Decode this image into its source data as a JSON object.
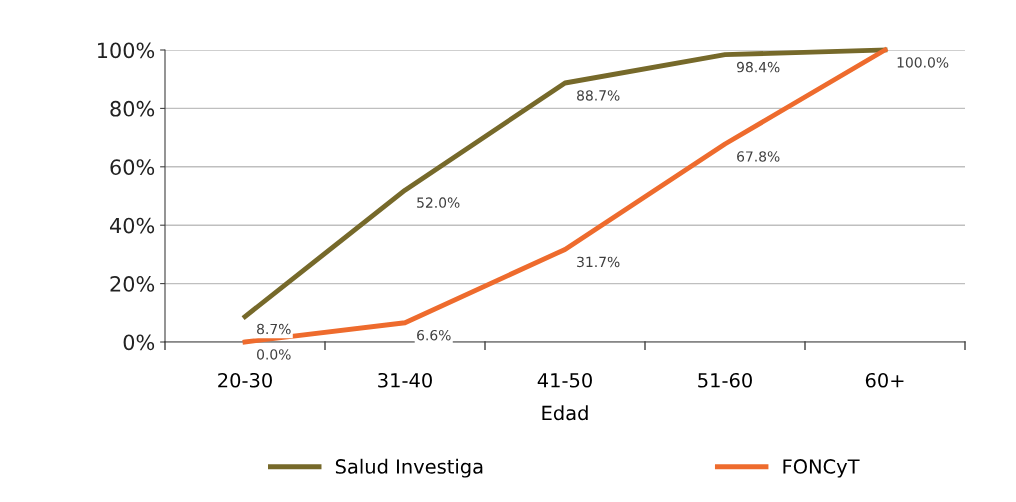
{
  "chart_data": {
    "type": "line",
    "xlabel": "Edad",
    "categories": [
      "20-30",
      "31-40",
      "41-50",
      "51-60",
      "60+"
    ],
    "series": [
      {
        "name": "Salud Investiga",
        "color": "#76692a",
        "values": [
          8.7,
          52.0,
          88.7,
          98.4,
          100.0
        ],
        "value_labels": [
          "8.7%",
          "52.0%",
          "88.7%",
          "98.4%",
          null
        ]
      },
      {
        "name": "FONCyT",
        "color": "#ee6b2d",
        "values": [
          0.0,
          6.6,
          31.7,
          67.8,
          100.0
        ],
        "value_labels": [
          "0.0%",
          "6.6%",
          "31.7%",
          "67.8%",
          "100.0%"
        ]
      }
    ],
    "ylim": [
      0,
      100
    ],
    "yticks": [
      {
        "value": 0,
        "label": "0%"
      },
      {
        "value": 20,
        "label": "20%"
      },
      {
        "value": 40,
        "label": "40%"
      },
      {
        "value": 60,
        "label": "60%"
      },
      {
        "value": 80,
        "label": "80%"
      },
      {
        "value": 100,
        "label": "100%"
      }
    ],
    "grid": "y",
    "legend": "bottom",
    "marker": "none",
    "line_style": "solid"
  }
}
